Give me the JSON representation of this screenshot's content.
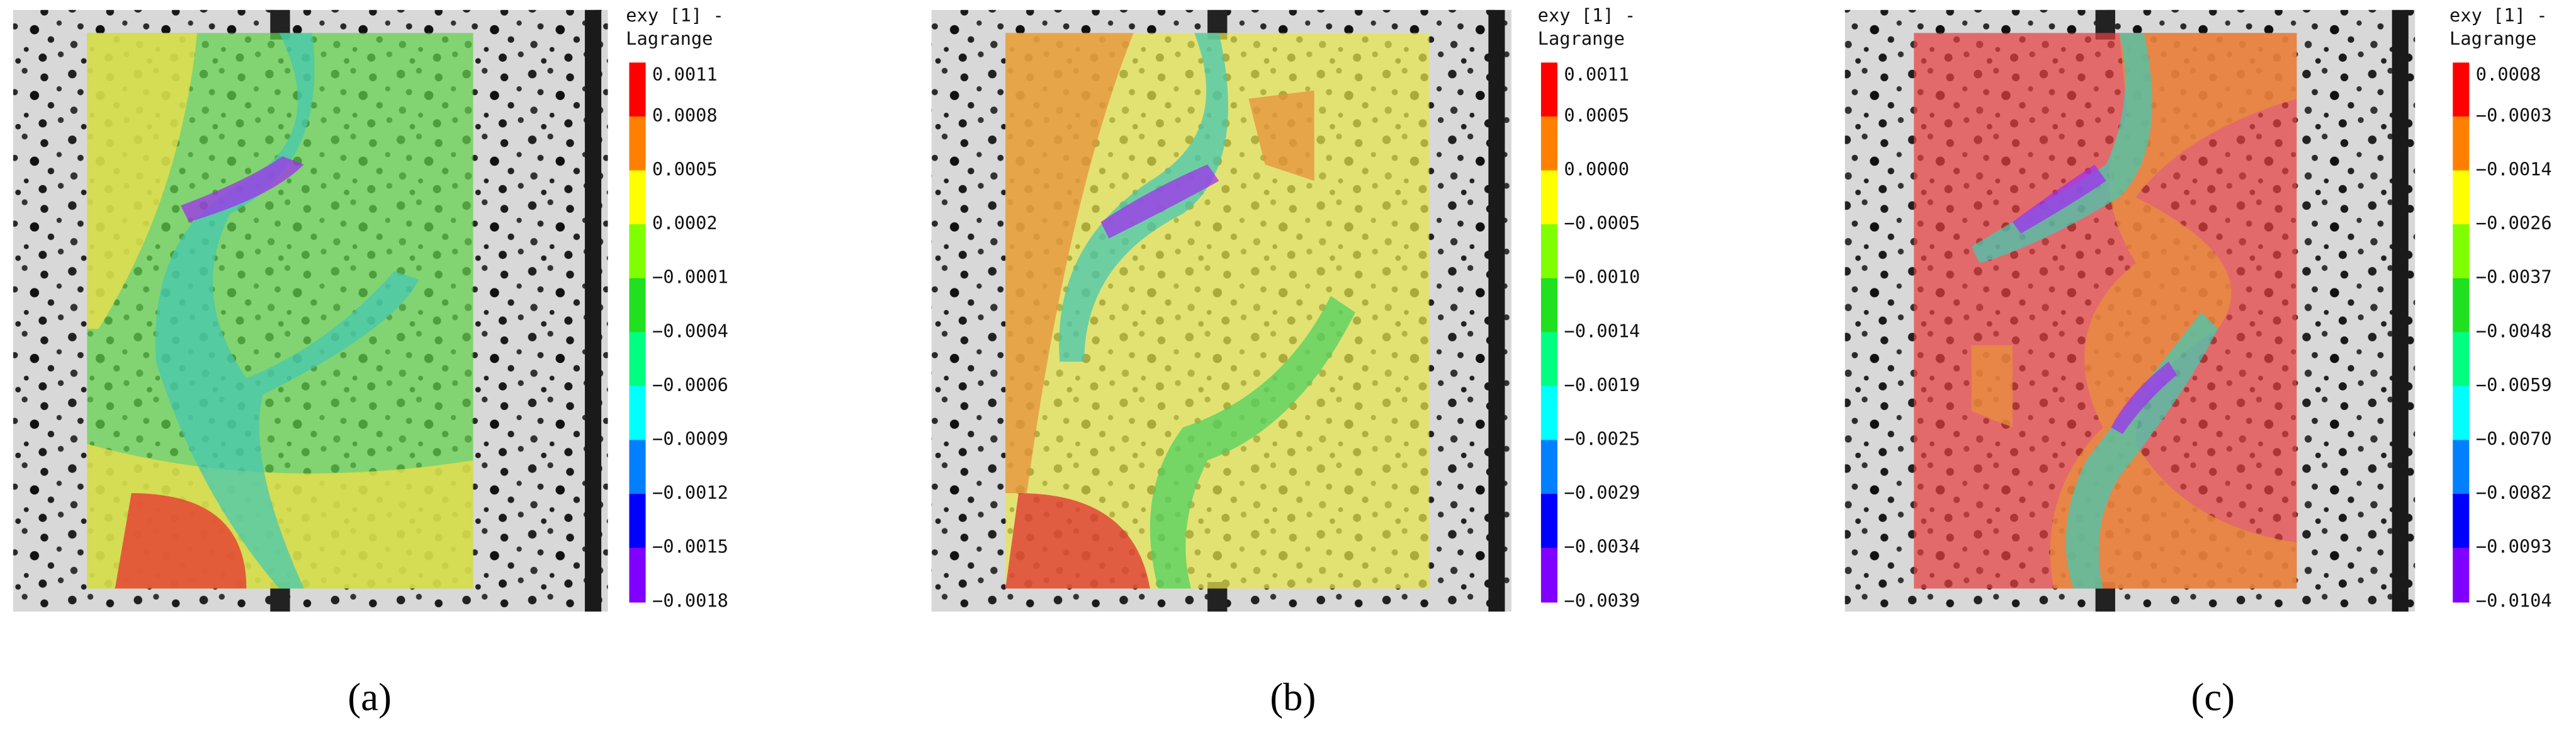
{
  "panels": [
    {
      "colorbar": {
        "title": [
          "exy [1] -",
          "Lagrange"
        ],
        "ticks": [
          "0.0011",
          "0.0008",
          "0.0005",
          "0.0002",
          "−0.0001",
          "−0.0004",
          "−0.0006",
          "−0.0009",
          "−0.0012",
          "−0.0015",
          "−0.0018"
        ]
      },
      "label": "(a)"
    },
    {
      "colorbar": {
        "title": [
          "exy [1] -",
          "Lagrange"
        ],
        "ticks": [
          "0.0011",
          "0.0005",
          "0.0000",
          "−0.0005",
          "−0.0010",
          "−0.0014",
          "−0.0019",
          "−0.0025",
          "−0.0029",
          "−0.0034",
          "−0.0039"
        ]
      },
      "label": "(b)"
    },
    {
      "colorbar": {
        "title": [
          "exy [1] -",
          "Lagrange"
        ],
        "ticks": [
          "0.0008",
          "−0.0003",
          "−0.0014",
          "−0.0026",
          "−0.0037",
          "−0.0048",
          "−0.0059",
          "−0.0070",
          "−0.0082",
          "−0.0093",
          "−0.0104"
        ]
      },
      "label": "(c)"
    }
  ]
}
